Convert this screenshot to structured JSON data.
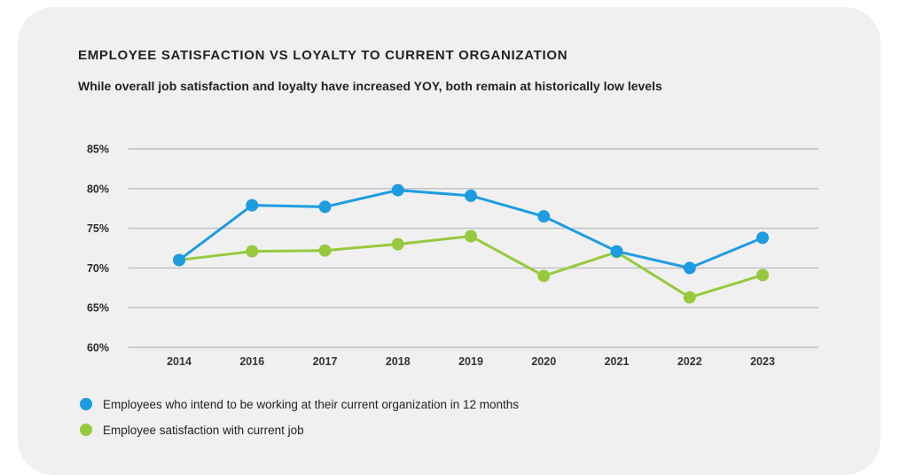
{
  "card": {
    "title": "EMPLOYEE SATISFACTION VS LOYALTY TO CURRENT ORGANIZATION",
    "subtitle": "While overall job satisfaction and loyalty have increased YOY, both remain at historically low levels"
  },
  "colors": {
    "card_background": "#f0f0f0",
    "page_background": "#ffffff",
    "gridline": "#bdbdbd",
    "text": "#222222",
    "series_blue": "#1e9ce0",
    "series_green": "#97c93d"
  },
  "chart_data": {
    "type": "line",
    "title": "EMPLOYEE SATISFACTION VS LOYALTY TO CURRENT ORGANIZATION",
    "subtitle": "While overall job satisfaction and loyalty have increased YOY, both remain at historically low levels",
    "categories": [
      "2014",
      "2016",
      "2017",
      "2018",
      "2019",
      "2020",
      "2021",
      "2022",
      "2023"
    ],
    "series": [
      {
        "name": "Employees who intend to be working at their current organization in 12 months",
        "color": "#1e9ce0",
        "values": [
          71,
          77.9,
          77.7,
          79.8,
          79.1,
          76.5,
          72.1,
          70,
          73.8
        ]
      },
      {
        "name": "Employee satisfaction with current job",
        "color": "#97c93d",
        "values": [
          71,
          72.1,
          72.2,
          73,
          74,
          69,
          72,
          66.3,
          69.1
        ]
      }
    ],
    "xlabel": "",
    "ylabel": "",
    "ylim": [
      60,
      85
    ],
    "ytick_values": [
      85,
      80,
      75,
      70,
      65,
      60
    ],
    "ytick_labels": [
      "85%",
      "80%",
      "75%",
      "70%",
      "65%",
      "60%"
    ],
    "grid": true,
    "legend_position": "bottom-left"
  }
}
